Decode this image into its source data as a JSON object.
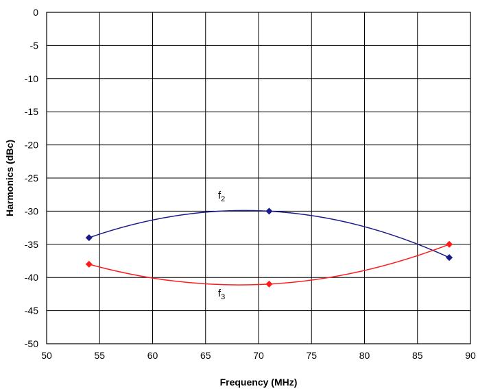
{
  "chart_data": {
    "type": "line",
    "title": "",
    "xlabel": "Frequency (MHz)",
    "ylabel": "Harmonics (dBc)",
    "xlim": [
      50,
      90
    ],
    "ylim": [
      -50,
      0
    ],
    "xticks": [
      50,
      55,
      60,
      65,
      70,
      75,
      80,
      85,
      90
    ],
    "yticks": [
      0,
      -5,
      -10,
      -15,
      -20,
      -25,
      -30,
      -35,
      -40,
      -45,
      -50
    ],
    "xtick_labels": [
      "50",
      "55",
      "60",
      "65",
      "70",
      "75",
      "80",
      "85",
      "90"
    ],
    "ytick_labels": [
      "0",
      "-5",
      "-10",
      "-15",
      "-20",
      "-25",
      "-30",
      "-35",
      "-40",
      "-45",
      "-50"
    ],
    "grid": true,
    "smooth": true,
    "series": [
      {
        "name": "f2",
        "label_main": "f",
        "label_sub": "2",
        "color": "#1a1a8c",
        "x": [
          54,
          71,
          88
        ],
        "y": [
          -34,
          -30,
          -37
        ]
      },
      {
        "name": "f3",
        "label_main": "f",
        "label_sub": "3",
        "color": "#ff1a1a",
        "x": [
          54,
          71,
          88
        ],
        "y": [
          -38,
          -41,
          -35
        ]
      }
    ]
  }
}
